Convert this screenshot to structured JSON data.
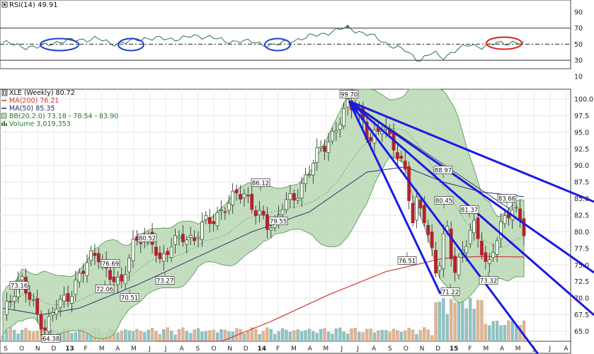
{
  "colors": {
    "bollinger_fill": "#b9d8b4",
    "bollinger_line": "#5f9a5f",
    "ma200": "#d23a3a",
    "ma50": "#2d2f78",
    "up_candle": "#5b8f3d",
    "down_candle": "#b5222c",
    "trendline": "#1a1ae6",
    "highlight_blue": "#1f3fd0",
    "highlight_red": "#e02020",
    "volume_up": "#8cc4c4",
    "volume_down": "#e2b48e",
    "rsi_line": "#2f6f58",
    "rsi_fill": "#2f7f5f"
  },
  "rsi_panel": {
    "label": "RSI(14) 49.91",
    "icon": "indicator-square-icon",
    "ticks": [
      "90",
      "70",
      "50",
      "30",
      "10"
    ]
  },
  "price_panel": {
    "legend": [
      {
        "text": "XLE (Weekly) 80.72",
        "color": "#111111",
        "icon": "candlestick-icon"
      },
      {
        "text": "MA(200) 76.21",
        "color": "#d23a3a",
        "icon": "line-swatch-icon"
      },
      {
        "text": "MA(50) 85.35",
        "color": "#2d2f78",
        "icon": "line-swatch-icon"
      },
      {
        "text": "BB(20,2.0) 73.18 - 78.54 - 83.90",
        "color": "#2e7a2e",
        "icon": "band-swatch-icon"
      },
      {
        "text": "Volume 3,019,353",
        "color": "#2e7a2e",
        "icon": "volume-bars-icon"
      }
    ],
    "ticks": [
      "100.0",
      "97.5",
      "95.0",
      "92.5",
      "90.0",
      "87.5",
      "85.0",
      "82.5",
      "80.0",
      "77.5",
      "75.0",
      "72.5",
      "70.0",
      "67.5",
      "65.0"
    ]
  },
  "x_axis": {
    "labels": [
      "S",
      "O",
      "N",
      "D",
      "13",
      "F",
      "M",
      "A",
      "M",
      "J",
      "J",
      "A",
      "S",
      "O",
      "N",
      "D",
      "14",
      "F",
      "M",
      "A",
      "M",
      "J",
      "J",
      "A",
      "S",
      "O",
      "N",
      "D",
      "15",
      "F",
      "M",
      "A",
      "M",
      "J",
      "J",
      "A"
    ],
    "year_labels": [
      "13",
      "14",
      "15"
    ]
  },
  "chart_data": {
    "type": "candlestick",
    "symbol": "XLE",
    "interval": "Weekly",
    "last_close": 80.72,
    "y_range": [
      63.5,
      101.5
    ],
    "rsi_range": [
      0,
      100
    ],
    "annotations": [
      {
        "label": "73.16",
        "value": 73.16
      },
      {
        "label": "64.38",
        "value": 64.38
      },
      {
        "label": "72.06",
        "value": 72.06
      },
      {
        "label": "76.69",
        "value": 76.69
      },
      {
        "label": "70.51",
        "value": 70.51
      },
      {
        "label": "80.52",
        "value": 80.52
      },
      {
        "label": "73.27",
        "value": 73.27
      },
      {
        "label": "86.12",
        "value": 86.12
      },
      {
        "label": "79.55",
        "value": 79.55
      },
      {
        "label": "99.70",
        "value": 99.7
      },
      {
        "label": "88.97",
        "value": 88.97
      },
      {
        "label": "76.51",
        "value": 76.51
      },
      {
        "label": "80.45",
        "value": 80.45
      },
      {
        "label": "71.22",
        "value": 71.22
      },
      {
        "label": "81.37",
        "value": 81.37
      },
      {
        "label": "73.32",
        "value": 73.32
      },
      {
        "label": "83.66",
        "value": 83.66
      }
    ],
    "indicators": {
      "ma200": 76.21,
      "ma50": 85.35,
      "bollinger": {
        "period": 20,
        "stddev": 2.0,
        "lower": 73.18,
        "middle": 78.54,
        "upper": 83.9
      },
      "rsi14": 49.91,
      "volume": 3019353
    },
    "trendlines_from": {
      "label": "99.70",
      "value": 99.7
    },
    "rsi_highlight_circles": [
      {
        "color": "blue"
      },
      {
        "color": "blue"
      },
      {
        "color": "blue"
      },
      {
        "color": "red"
      }
    ]
  }
}
